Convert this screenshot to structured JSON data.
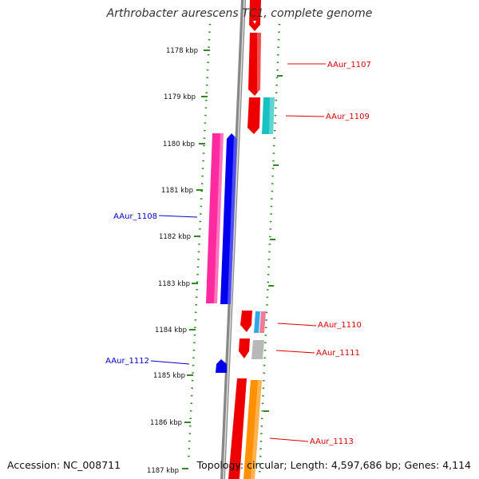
{
  "title": "Arthrobacter aurescens TC1, complete genome",
  "accession": "Accession: NC_008711",
  "summary": "Topology: circular; Length: 4,597,686 bp; Genes: 4,114",
  "colors": {
    "backbone": "#888888",
    "ruler": "#2e8b22",
    "forward_label": "#dd0000",
    "reverse_label": "#0000cc",
    "red": "#ee0000",
    "cyan": "#19c2c2",
    "magenta": "#ff2aa0",
    "blue": "#0000ee",
    "orange": "#ff9100",
    "light_blue": "#33a8e8",
    "pink": "#f07a9a",
    "gray": "#b8b8b8"
  },
  "ticks": [
    "1178 kbp",
    "1179 kbp",
    "1180 kbp",
    "1181 kbp",
    "1182 kbp",
    "1183 kbp",
    "1184 kbp",
    "1185 kbp",
    "1186 kbp",
    "1187 kbp"
  ],
  "gene_labels": {
    "aaur_1107": "AAur_1107",
    "aaur_1108": "AAur_1108",
    "aaur_1109": "AAur_1109",
    "aaur_1110": "AAur_1110",
    "aaur_1111": "AAur_1111",
    "aaur_1112": "AAur_1112",
    "aaur_1113": "AAur_1113"
  }
}
